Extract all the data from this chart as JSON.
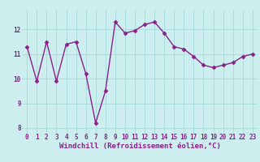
{
  "x": [
    0,
    1,
    2,
    3,
    4,
    5,
    6,
    7,
    8,
    9,
    10,
    11,
    12,
    13,
    14,
    15,
    16,
    17,
    18,
    19,
    20,
    21,
    22,
    23
  ],
  "y": [
    11.3,
    9.9,
    11.5,
    9.9,
    11.4,
    11.5,
    10.2,
    8.2,
    9.5,
    12.3,
    11.85,
    11.95,
    12.2,
    12.3,
    11.85,
    11.3,
    11.2,
    10.9,
    10.55,
    10.45,
    10.55,
    10.65,
    10.9,
    11.0
  ],
  "line_color": "#882288",
  "marker": "D",
  "markersize": 2.5,
  "linewidth": 1.0,
  "bg_color": "#cceeee",
  "grid_color": "#aadddd",
  "xlabel": "Windchill (Refroidissement éolien,°C)",
  "xlabel_fontsize": 6.5,
  "xlabel_color": "#882288",
  "tick_color": "#882288",
  "tick_fontsize": 5.5,
  "ylim": [
    7.8,
    12.8
  ],
  "xlim": [
    -0.5,
    23.5
  ],
  "yticks": [
    8,
    9,
    10,
    11,
    12
  ],
  "xticks": [
    0,
    1,
    2,
    3,
    4,
    5,
    6,
    7,
    8,
    9,
    10,
    11,
    12,
    13,
    14,
    15,
    16,
    17,
    18,
    19,
    20,
    21,
    22,
    23
  ]
}
